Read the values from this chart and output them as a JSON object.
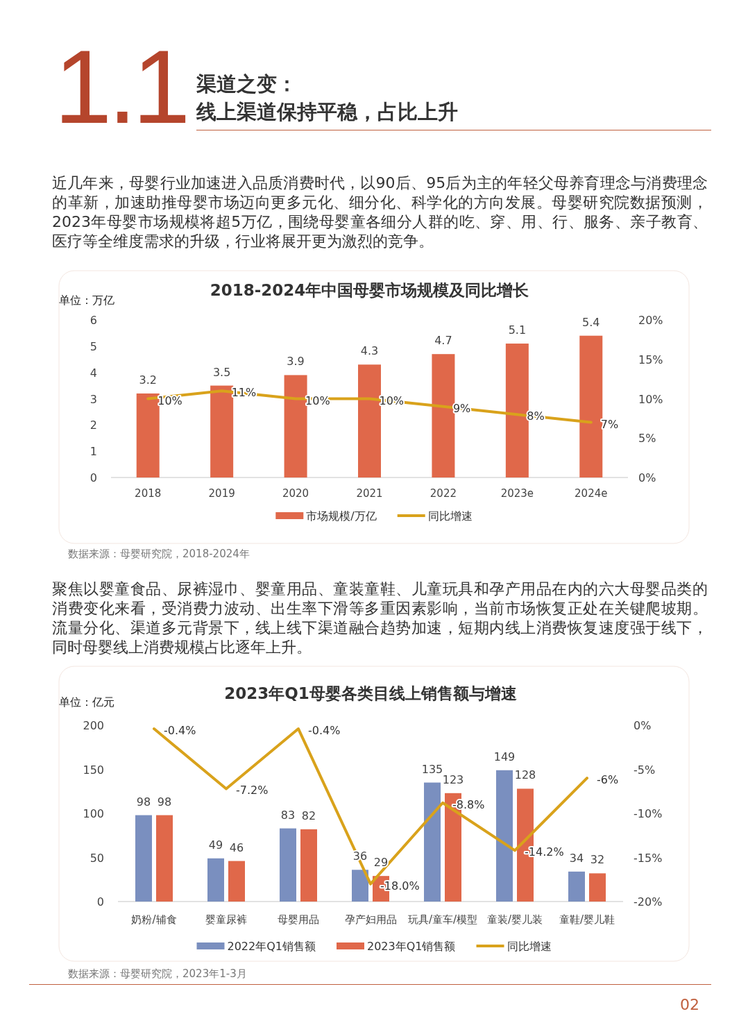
{
  "chart_data": [
    {
      "type": "other",
      "title": "渠道之变：",
      "subtitle": "线上渠道保持平稳，占比上升",
      "annotations": [
        "1.1",
        "近几年来，母婴行业加速进入品质消费时代，以90后、95后为主的年轻父母养育理念与消费理念的革新，加速助推母婴市场迈向更多元化、细分化、科学化的方向发展。母婴研究院数据预测，2023年母婴市场规模将超5万亿，围绕母婴童各细分人群的吃、穿、用、行、服务、亲子教育、医疗等全维度需求的升级，行业将展开更为激烈的竞争。"
      ]
    },
    {
      "type": "bar",
      "title": "2018-2024年中国母婴市场规模及同比增长",
      "ylabel": "单位：万亿",
      "categories": [
        "2018",
        "2019",
        "2020",
        "2021",
        "2022",
        "2023e",
        "2024e"
      ],
      "series": [
        {
          "name": "市场规模/万亿",
          "type": "bar",
          "color": "#e0684a",
          "values": [
            3.2,
            3.5,
            3.9,
            4.3,
            4.7,
            5.1,
            5.4
          ]
        },
        {
          "name": "同比增速",
          "type": "line",
          "axis": "y2",
          "color": "#d9a21b",
          "values": [
            10,
            11,
            10,
            10,
            9,
            8,
            7
          ],
          "value_labels": [
            "10%",
            "11%",
            "10%",
            "10%",
            "9%",
            "8%",
            "7%"
          ]
        }
      ],
      "ylim": [
        0,
        6
      ],
      "yticks": [
        0,
        1,
        2,
        3,
        4,
        5,
        6
      ],
      "y2lim": [
        0,
        20
      ],
      "y2ticks": [
        {
          "value": 0,
          "label": "0%"
        },
        {
          "value": 5,
          "label": "5%"
        },
        {
          "value": 10,
          "label": "10%"
        },
        {
          "value": 15,
          "label": "15%"
        },
        {
          "value": 20,
          "label": "20%"
        }
      ],
      "data_labels": true,
      "legend": "bottom",
      "annotations": [
        "数据来源：母婴研究院，2018-2024年"
      ]
    },
    {
      "type": "other",
      "annotations": [
        "聚焦以婴童食品、尿裤湿巾、婴童用品、童装童鞋、儿童玩具和孕产用品在内的六大母婴品类的消费变化来看，受消费力波动、出生率下滑等多重因素影响，当前市场恢复正处在关键爬坡期。流量分化、渠道多元背景下，线上线下渠道融合趋势加速，短期内线上消费恢复速度强于线下，同时母婴线上消费规模占比逐年上升。"
      ]
    },
    {
      "type": "bar",
      "title": "2023年Q1母婴各类目线上销售额与增速",
      "ylabel": "单位：亿元",
      "categories": [
        "奶粉/辅食",
        "婴童尿裤",
        "母婴用品",
        "孕产妇用品",
        "玩具/童车/模型",
        "童装/婴儿装",
        "童鞋/婴儿鞋"
      ],
      "series": [
        {
          "name": "2022年Q1销售额",
          "type": "bar",
          "color": "#7a8fbf",
          "values": [
            98,
            49,
            83,
            36,
            135,
            149,
            34
          ]
        },
        {
          "name": "2023年Q1销售额",
          "type": "bar",
          "color": "#e0684a",
          "values": [
            98,
            46,
            82,
            29,
            123,
            128,
            32
          ]
        },
        {
          "name": "同比增速",
          "type": "line",
          "axis": "y2",
          "color": "#d9a21b",
          "values": [
            -0.4,
            -7.2,
            -0.4,
            -18.0,
            -8.8,
            -14.2,
            -6
          ],
          "value_labels": [
            "-0.4%",
            "-7.2%",
            "-0.4%",
            "-18.0%",
            "-8.8%",
            "-14.2%",
            "-6%"
          ]
        }
      ],
      "ylim": [
        0,
        200
      ],
      "yticks": [
        0,
        50,
        100,
        150,
        200
      ],
      "y2lim": [
        -20,
        0
      ],
      "y2ticks": [
        {
          "value": 0,
          "label": "0%"
        },
        {
          "value": -5,
          "label": "-5%"
        },
        {
          "value": -10,
          "label": "-10%"
        },
        {
          "value": -15,
          "label": "-15%"
        },
        {
          "value": -20,
          "label": "-20%"
        }
      ],
      "data_labels": true,
      "legend": "bottom",
      "annotations": [
        "数据来源：母婴研究院，2023年1-3月",
        "02"
      ]
    }
  ]
}
